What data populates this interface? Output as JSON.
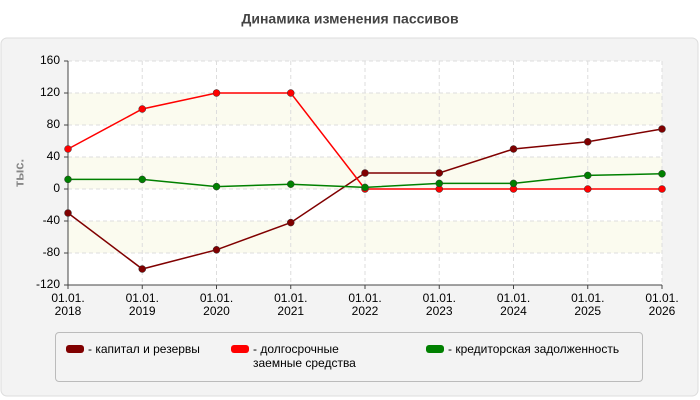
{
  "chart_data": {
    "type": "line",
    "title": "Динамика изменения пассивов",
    "y_label": "тыс.",
    "categories": [
      "01.01. 2018",
      "01.01. 2019",
      "01.01. 2020",
      "01.01. 2021",
      "01.01. 2022",
      "01.01. 2023",
      "01.01. 2024",
      "01.01. 2025",
      "01.01. 2026"
    ],
    "series": [
      {
        "name": "- капитал и резервы",
        "color": "#800000",
        "values": [
          -30,
          -100,
          -76,
          -42,
          20,
          20,
          50,
          59,
          75
        ]
      },
      {
        "name": "- долгосрочные заемные средства",
        "color": "#ff0000",
        "values": [
          50,
          100,
          120,
          120,
          0,
          0,
          0,
          0,
          0
        ]
      },
      {
        "name": "- кредиторская задолженность",
        "color": "#008000",
        "values": [
          12,
          12,
          3,
          6,
          2,
          7,
          7,
          17,
          19
        ]
      }
    ],
    "ylim": [
      -120,
      160
    ],
    "yticks": [
      -120,
      -80,
      -40,
      0,
      40,
      80,
      120,
      160
    ],
    "grid": true
  }
}
